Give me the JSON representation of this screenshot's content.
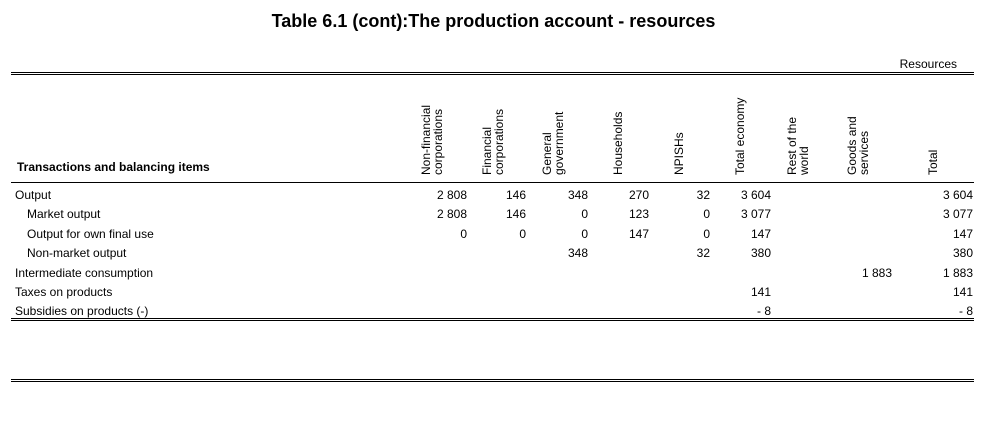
{
  "title": "Table 6.1 (cont):The production account - resources",
  "resources_label": "Resources",
  "row_header": "Transactions and balancing items",
  "columns": [
    {
      "lines": [
        "Non-financial",
        "corporations"
      ]
    },
    {
      "lines": [
        "Financial",
        "corporations"
      ]
    },
    {
      "lines": [
        "General",
        "government"
      ]
    },
    {
      "lines": [
        "Households"
      ]
    },
    {
      "lines": [
        "NPISHs"
      ]
    },
    {
      "lines": [
        "Total economy"
      ]
    },
    {
      "lines": [
        "Rest of the",
        "world"
      ]
    },
    {
      "lines": [
        "Goods and",
        "services"
      ]
    },
    {
      "lines": [
        "Total"
      ]
    }
  ],
  "rows": [
    {
      "label": "Output",
      "indent": false,
      "values": [
        "2 808",
        "146",
        "348",
        "270",
        "32",
        "3 604",
        "",
        "",
        "3 604"
      ]
    },
    {
      "label": "Market output",
      "indent": true,
      "values": [
        "2 808",
        "146",
        "0",
        "123",
        "0",
        "3 077",
        "",
        "",
        "3 077"
      ]
    },
    {
      "label": "Output for own final use",
      "indent": true,
      "values": [
        "0",
        "0",
        "0",
        "147",
        "0",
        "147",
        "",
        "",
        "147"
      ]
    },
    {
      "label": "Non-market output",
      "indent": true,
      "values": [
        "",
        "",
        "348",
        "",
        "32",
        "380",
        "",
        "",
        "380"
      ]
    },
    {
      "label": "Intermediate consumption",
      "indent": false,
      "values": [
        "",
        "",
        "",
        "",
        "",
        "",
        "",
        "1 883",
        "1 883"
      ]
    },
    {
      "label": "Taxes  on products",
      "indent": false,
      "values": [
        "",
        "",
        "",
        "",
        "",
        "141",
        "",
        "",
        "141"
      ]
    },
    {
      "label": "Subsidies on products (-)",
      "indent": false,
      "values": [
        "",
        "",
        "",
        "",
        "",
        "- 8",
        "",
        "",
        "- 8"
      ]
    }
  ]
}
